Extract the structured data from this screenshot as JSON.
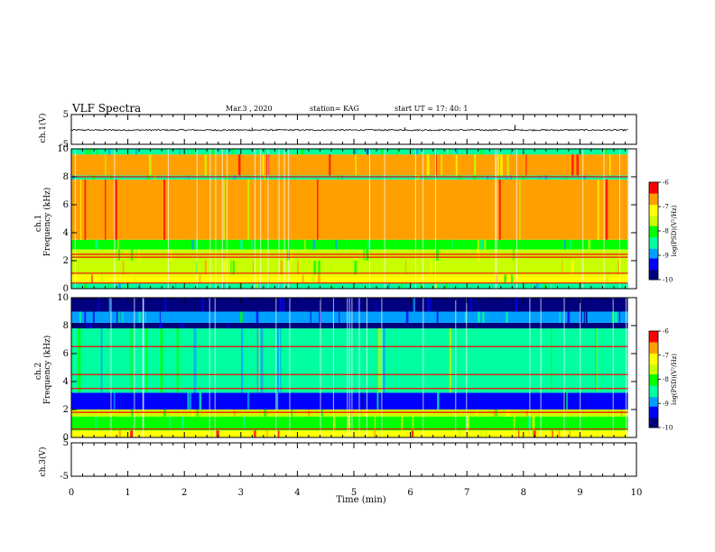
{
  "header": {
    "title": "VLF Spectra",
    "date": "Mar.3  , 2020",
    "station": "station= KAG",
    "start": "start  UT  =   17: 40: 1"
  },
  "colors": {
    "spectrum_scale": [
      "#00007f",
      "#0000ff",
      "#00a0ff",
      "#00ffa0",
      "#00ff00",
      "#c8ff00",
      "#ffff00",
      "#ffa000",
      "#ff0000",
      "#ffffff"
    ]
  },
  "chart_data": [
    {
      "type": "line",
      "panel": "ch1-waveform",
      "ylabel": "ch.1(V)",
      "ylim": [
        -5,
        5
      ],
      "yticks": [
        "5",
        "-5"
      ],
      "xlim": [
        0,
        10
      ],
      "baseline": -0.2,
      "spikes": [
        {
          "x": 7.85,
          "y": 1.5
        },
        {
          "x": 3.2,
          "y": 0.6
        },
        {
          "x": 5.9,
          "y": 0.7
        }
      ]
    },
    {
      "type": "heatmap",
      "panel": "ch1-spectrogram",
      "ylabel": "ch.1\nFrequency (kHz)",
      "ylim": [
        0,
        10
      ],
      "yticks": [
        "0",
        "2",
        "4",
        "6",
        "8",
        "10"
      ],
      "xlim": [
        0,
        10
      ],
      "colorbar": {
        "label": "log(PSD)(V²/Hz)",
        "ticks": [
          "-6",
          "-7",
          "-8",
          "-9",
          "-10"
        ],
        "range": [
          -10,
          -6
        ]
      },
      "bands": [
        {
          "f0": 0.0,
          "f1": 0.4,
          "level": -8.3
        },
        {
          "f0": 0.4,
          "f1": 1.0,
          "level": -7.2
        },
        {
          "f0": 1.0,
          "f1": 2.0,
          "level": -7.4
        },
        {
          "f0": 2.0,
          "f1": 2.8,
          "level": -7.7
        },
        {
          "f0": 2.8,
          "f1": 3.5,
          "level": -8.1
        },
        {
          "f0": 3.5,
          "f1": 7.8,
          "level": -6.7
        },
        {
          "f0": 7.8,
          "f1": 8.1,
          "level": -8.3
        },
        {
          "f0": 8.1,
          "f1": 9.6,
          "level": -6.8
        },
        {
          "f0": 9.6,
          "f1": 10.0,
          "level": -8.4
        }
      ],
      "lines_khz": [
        0.4,
        1.1,
        2.25,
        2.45,
        8.0
      ]
    },
    {
      "type": "heatmap",
      "panel": "ch2-spectrogram",
      "ylabel": "ch.2\nFrequency (kHz)",
      "ylim": [
        0,
        10
      ],
      "yticks": [
        "0",
        "2",
        "4",
        "6",
        "8",
        "10"
      ],
      "xlim": [
        0,
        10
      ],
      "colorbar": {
        "label": "log(PSD)(V²/Hz)",
        "ticks": [
          "-6",
          "-7",
          "-8",
          "-9",
          "-10"
        ],
        "range": [
          -10,
          -6
        ]
      },
      "bands": [
        {
          "f0": 0.0,
          "f1": 0.5,
          "level": -6.9
        },
        {
          "f0": 0.5,
          "f1": 1.5,
          "level": -7.8
        },
        {
          "f0": 1.5,
          "f1": 2.0,
          "level": -7.4
        },
        {
          "f0": 2.0,
          "f1": 3.2,
          "level": -9.2
        },
        {
          "f0": 3.2,
          "f1": 7.8,
          "level": -8.3
        },
        {
          "f0": 7.8,
          "f1": 8.2,
          "level": -9.9
        },
        {
          "f0": 8.2,
          "f1": 9.0,
          "level": -8.8
        },
        {
          "f0": 9.0,
          "f1": 10.0,
          "level": -9.6
        }
      ],
      "lines_khz": [
        0.6,
        1.8,
        3.5,
        4.5,
        6.5
      ]
    },
    {
      "type": "line",
      "panel": "ch3-waveform",
      "ylabel": "ch.3(V)",
      "ylim": [
        -5,
        5
      ],
      "yticks": [
        "5",
        "-5"
      ],
      "xlim": [
        0,
        10
      ],
      "baseline": null
    }
  ],
  "xaxis": {
    "label": "Time  (min)",
    "ticks": [
      "0",
      "1",
      "2",
      "3",
      "4",
      "5",
      "6",
      "7",
      "8",
      "9",
      "10"
    ]
  }
}
